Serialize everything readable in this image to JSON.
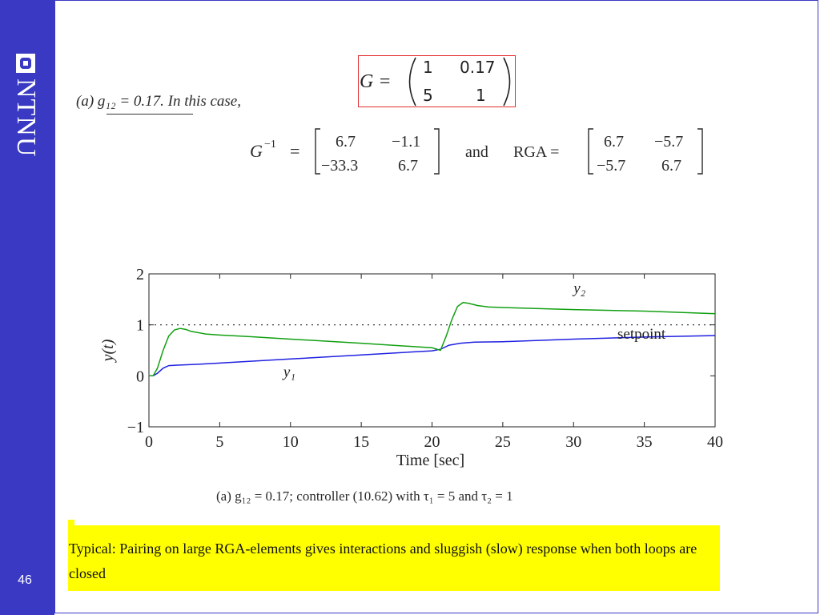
{
  "slide": {
    "page_number": "46",
    "logo_text": "NTNU",
    "scan_heading": "(a)  g₁₂ = 0.17. In this case,",
    "boxed_equation": {
      "lhs": "G =",
      "matrix": [
        [
          "1",
          "0.17"
        ],
        [
          "5",
          "1"
        ]
      ]
    },
    "ginv_equation": {
      "lhs": "G",
      "sup": "−1",
      "eq": "=",
      "matrix": [
        [
          "6.7",
          "−1.1"
        ],
        [
          "−33.3",
          "6.7"
        ]
      ],
      "and": "and",
      "rga_lhs": "RGA =",
      "rga_matrix": [
        [
          "6.7",
          "−5.7"
        ],
        [
          "−5.7",
          "6.7"
        ]
      ]
    },
    "figure_caption": "(a) g₁₂ = 0.17; controller (10.62) with τ₁ = 5 and τ₂ = 1",
    "highlight_text": "Typical: Pairing on large RGA-elements gives interactions and sluggish (slow) response when both loops are closed"
  },
  "chart_data": {
    "type": "line",
    "xlabel": "Time [sec]",
    "ylabel": "y(t)",
    "xlim": [
      0,
      40
    ],
    "ylim": [
      -1,
      2
    ],
    "xticks": [
      0,
      5,
      10,
      15,
      20,
      25,
      30,
      35,
      40
    ],
    "yticks": [
      -1,
      0,
      1,
      2
    ],
    "grid": false,
    "colors": {
      "y1": "#2020e0",
      "y2": "#12a012",
      "setpoint": "#222222"
    },
    "annotations": [
      {
        "text": "y₂",
        "x": 30,
        "y": 1.62
      },
      {
        "text": "setpoint",
        "x": 33.1,
        "y": 0.73
      },
      {
        "text": "y₁",
        "x": 9.5,
        "y": -0.02
      }
    ],
    "series": [
      {
        "name": "setpoint",
        "style": "dotted",
        "x": [
          0,
          40
        ],
        "y": [
          1,
          1
        ]
      },
      {
        "name": "y1",
        "x": [
          0,
          0.3,
          0.6,
          1,
          1.4,
          2,
          3,
          5,
          10,
          15,
          20,
          20.6,
          21.2,
          22,
          23,
          25,
          30,
          35,
          40
        ],
        "y": [
          0,
          0,
          0.05,
          0.15,
          0.2,
          0.21,
          0.22,
          0.25,
          0.33,
          0.41,
          0.49,
          0.52,
          0.6,
          0.64,
          0.66,
          0.67,
          0.72,
          0.76,
          0.79
        ]
      },
      {
        "name": "y2",
        "x": [
          0,
          0.3,
          0.6,
          1,
          1.4,
          1.8,
          2.2,
          2.6,
          3,
          4,
          5,
          7,
          10,
          15,
          20,
          20.6,
          21,
          21.4,
          21.8,
          22.2,
          22.6,
          23.2,
          24,
          25,
          30,
          35,
          40
        ],
        "y": [
          0,
          0,
          0.15,
          0.5,
          0.78,
          0.9,
          0.93,
          0.91,
          0.87,
          0.82,
          0.8,
          0.77,
          0.72,
          0.64,
          0.55,
          0.5,
          0.78,
          1.1,
          1.36,
          1.44,
          1.42,
          1.38,
          1.35,
          1.34,
          1.3,
          1.27,
          1.22
        ]
      }
    ]
  }
}
